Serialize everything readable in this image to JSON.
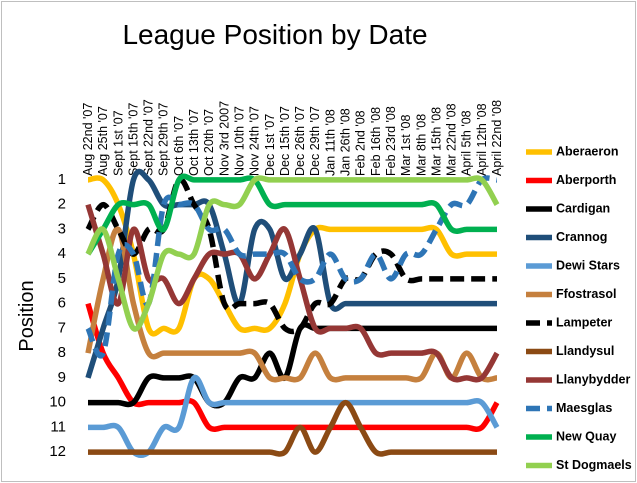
{
  "chart_data": {
    "type": "line",
    "title": "League Position by Date",
    "y_label": "Position",
    "categories": [
      "Aug 22nd '07",
      "Aug 25th '07",
      "Sept 1st '07",
      "Sept 15th '07",
      "Sept 22nd '07",
      "Sept 29th '07",
      "Oct 6th '07",
      "Oct 13th '07",
      "Oct 20th '07",
      "Nov 3rd 2007",
      "Nov 10th '07",
      "Nov 24th '07",
      "Dec 1st '07",
      "Dec 15th '07",
      "Dec 26th '07",
      "Dec 29th '07",
      "Jan 11th '08",
      "Jan 26th '08",
      "Feb 2nd '08",
      "Feb 16th '08",
      "Feb 23rd '08",
      "Mar 1st '08",
      "Mar 8th '08",
      "Mar 15th '08",
      "Mar 22nd '08",
      "April 5th '08",
      "April 12th '08",
      "April 22nd '08"
    ],
    "ylim": [
      12.5,
      0.5
    ],
    "yticks": [
      1,
      2,
      3,
      4,
      5,
      6,
      7,
      8,
      9,
      10,
      11,
      12
    ],
    "legend": "right",
    "smooth": true,
    "series": [
      {
        "name": "Aberaeron",
        "color": "#ffc000",
        "values": [
          1,
          1,
          2,
          4,
          7,
          7,
          7,
          5,
          5,
          6,
          7,
          7,
          7,
          6,
          4,
          3,
          3,
          3,
          3,
          3,
          3,
          3,
          3,
          3,
          4,
          4,
          4,
          4
        ]
      },
      {
        "name": "Aberporth",
        "color": "#ff0000",
        "values": [
          6,
          8,
          9,
          10,
          10,
          10,
          10,
          10,
          11,
          11,
          11,
          11,
          11,
          11,
          11,
          11,
          11,
          11,
          11,
          11,
          11,
          11,
          11,
          11,
          11,
          11,
          11,
          10
        ]
      },
      {
        "name": "Cardigan",
        "color": "#000000",
        "values": [
          10,
          10,
          10,
          10,
          9,
          9,
          9,
          9,
          10,
          10,
          9,
          9,
          8,
          9,
          7,
          7,
          7,
          7,
          7,
          7,
          7,
          7,
          7,
          7,
          7,
          7,
          7,
          7
        ]
      },
      {
        "name": "Crannog",
        "color": "#1f4e79",
        "values": [
          9,
          7,
          5,
          1,
          1,
          2,
          2,
          2,
          2,
          4,
          6,
          3,
          3,
          5,
          4,
          3,
          6,
          6,
          6,
          6,
          6,
          6,
          6,
          6,
          6,
          6,
          6,
          6
        ]
      },
      {
        "name": "Dewi Stars",
        "color": "#5b9bd5",
        "values": [
          11,
          11,
          11,
          12,
          12,
          11,
          11,
          9,
          10,
          10,
          10,
          10,
          10,
          10,
          10,
          10,
          10,
          10,
          10,
          10,
          10,
          10,
          10,
          10,
          10,
          10,
          10,
          11
        ]
      },
      {
        "name": "Ffostrasol",
        "color": "#c5803e",
        "values": [
          8,
          5,
          3,
          6,
          8,
          8,
          8,
          8,
          8,
          8,
          8,
          8,
          9,
          9,
          9,
          8,
          9,
          9,
          9,
          9,
          9,
          9,
          9,
          8,
          9,
          8,
          9,
          9
        ]
      },
      {
        "name": "Lampeter",
        "color": "#000000",
        "dashed": true,
        "values": [
          3,
          2,
          3,
          4,
          3,
          3,
          1,
          2,
          3,
          6,
          6,
          6,
          6,
          7,
          7,
          6,
          6,
          5,
          5,
          4,
          4,
          5,
          5,
          5,
          5,
          5,
          5,
          5
        ]
      },
      {
        "name": "Llandysul",
        "color": "#8b4a14",
        "values": [
          12,
          12,
          12,
          12,
          12,
          12,
          12,
          12,
          12,
          12,
          12,
          12,
          12,
          12,
          11,
          12,
          11,
          10,
          11,
          12,
          12,
          12,
          12,
          12,
          12,
          12,
          12,
          12
        ]
      },
      {
        "name": "Llanybydder",
        "color": "#953735",
        "values": [
          2,
          4,
          6,
          3,
          5,
          5,
          6,
          5,
          4,
          4,
          4,
          5,
          4,
          3,
          5,
          7,
          7,
          7,
          7,
          8,
          8,
          8,
          8,
          8,
          9,
          9,
          9,
          8
        ]
      },
      {
        "name": "Maesglas",
        "color": "#2e75b6",
        "dashed": true,
        "values": [
          7,
          8,
          4,
          4,
          6,
          2,
          2,
          2,
          3,
          3,
          4,
          4,
          4,
          4,
          5,
          5,
          4,
          5,
          5,
          4,
          5,
          4,
          4,
          3,
          2,
          2,
          1,
          1
        ]
      },
      {
        "name": "New Quay",
        "color": "#00b050",
        "values": [
          4,
          3,
          2,
          2,
          2,
          3,
          1,
          1,
          1,
          1,
          1,
          1,
          2,
          2,
          2,
          2,
          2,
          2,
          2,
          2,
          2,
          2,
          2,
          2,
          3,
          3,
          3,
          3
        ]
      },
      {
        "name": "St Dogmaels",
        "color": "#92d050",
        "values": [
          4,
          3,
          5,
          7,
          6,
          4,
          4,
          4,
          2,
          2,
          2,
          1,
          1,
          1,
          1,
          1,
          1,
          1,
          1,
          1,
          1,
          1,
          1,
          1,
          1,
          1,
          1,
          2
        ]
      }
    ]
  }
}
